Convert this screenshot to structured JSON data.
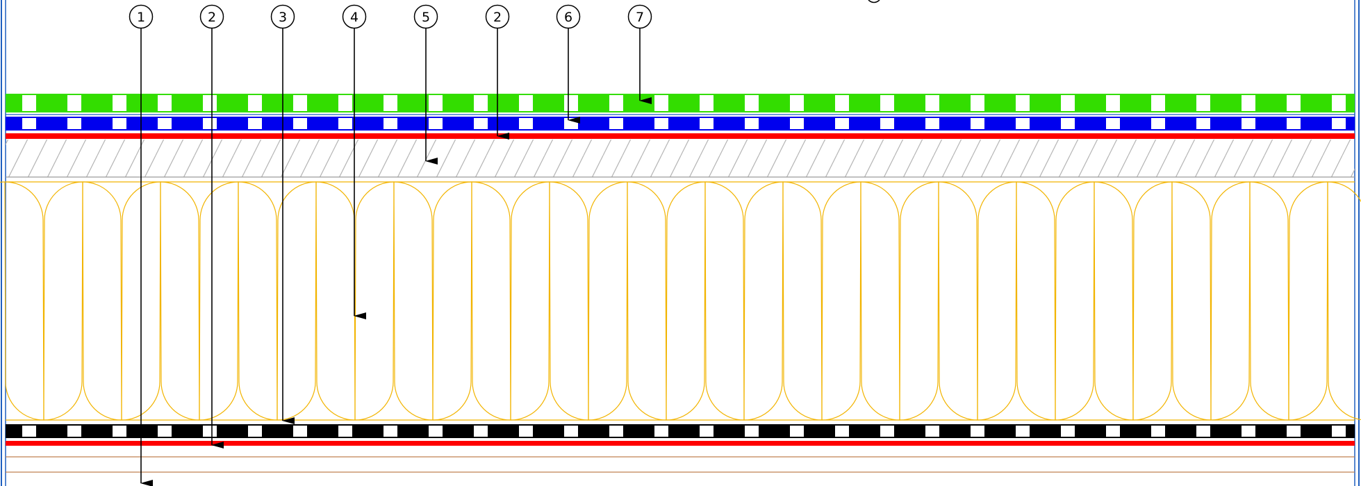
{
  "callouts": [
    {
      "label": "1"
    },
    {
      "label": "2"
    },
    {
      "label": "3"
    },
    {
      "label": "4"
    },
    {
      "label": "5"
    },
    {
      "label": "2"
    },
    {
      "label": "6"
    },
    {
      "label": "7"
    }
  ],
  "colors": {
    "frame": "#1f5fbf",
    "green_layer": "#33dd00",
    "blue_layer": "#0000ee",
    "red_layer": "#ff0000",
    "hatch": "#b0b0b0",
    "insulation": "#f2b400",
    "black_layer": "#000000",
    "brown_lines": "#c08050"
  }
}
